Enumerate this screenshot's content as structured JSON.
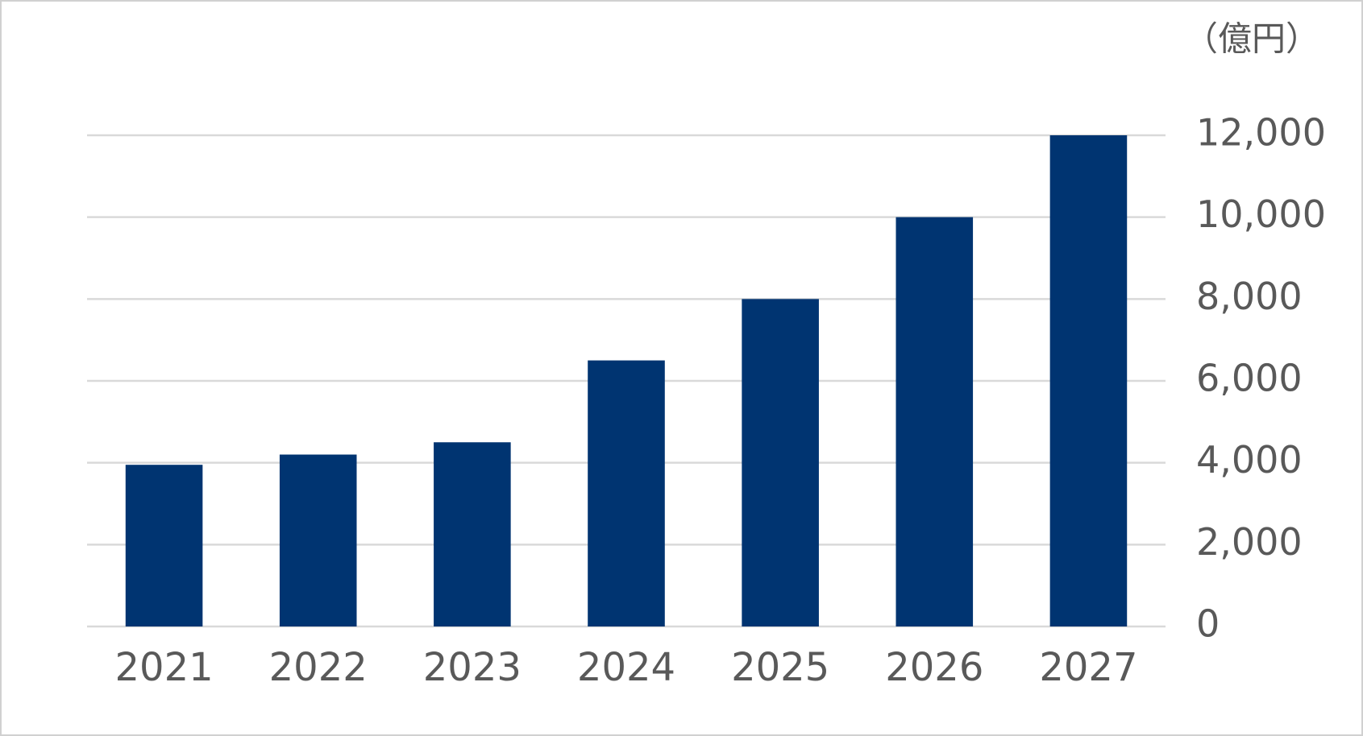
{
  "chart_data": {
    "type": "bar",
    "y_axis_label": "（億円）",
    "categories": [
      "2021",
      "2022",
      "2023",
      "2024",
      "2025",
      "2026",
      "2027"
    ],
    "values": [
      3950,
      4200,
      4500,
      6500,
      8000,
      10000,
      12000
    ],
    "color": "#003471",
    "ylim": [
      0,
      12000
    ],
    "yticks": [
      0,
      {
        "value": 2000,
        "label": "2,000"
      },
      {
        "value": 4000,
        "label": "4,000"
      },
      {
        "value": 6000,
        "label": "6,000"
      },
      {
        "value": 8000,
        "label": "8,000"
      },
      {
        "value": 10000,
        "label": "10,000"
      },
      {
        "value": 12000,
        "label": "12,000"
      }
    ],
    "grid": true,
    "y_axis_side": "right"
  }
}
